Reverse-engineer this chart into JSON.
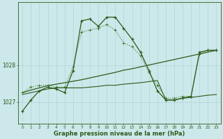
{
  "bg_color": "#cce8ea",
  "grid_color": "#b0d4d6",
  "line_color_dark": "#2d5a1b",
  "line_color_light": "#3d7a2b",
  "xlabel": "Graphe pression niveau de la mer (hPa)",
  "ylabel_ticks": [
    1027,
    1028
  ],
  "xlim": [
    -0.5,
    23.5
  ],
  "ylim": [
    1026.4,
    1029.7
  ],
  "hours": [
    0,
    1,
    2,
    3,
    4,
    5,
    6,
    7,
    8,
    9,
    10,
    11,
    12,
    13,
    14,
    15,
    16,
    17,
    18,
    19,
    20,
    21,
    22,
    23
  ],
  "series1": [
    1026.75,
    1027.05,
    1027.3,
    1027.4,
    1027.35,
    1027.25,
    1027.85,
    1029.2,
    1029.25,
    1029.05,
    1029.3,
    1029.3,
    1029.0,
    1028.7,
    1028.35,
    1027.85,
    1027.3,
    1027.05,
    1027.05,
    1027.1,
    1027.15,
    1028.35,
    1028.4,
    1028.4
  ],
  "series2": [
    1027.25,
    1027.4,
    1027.45,
    1027.45,
    1027.4,
    1027.4,
    1027.95,
    1028.9,
    1028.95,
    1029.0,
    1029.1,
    1028.95,
    1028.6,
    1028.5,
    1028.25,
    1027.8,
    1027.45,
    1027.1,
    1027.1,
    1027.15,
    1027.15,
    1028.3,
    1028.4,
    1028.4
  ],
  "series3": [
    1027.25,
    1027.32,
    1027.38,
    1027.44,
    1027.48,
    1027.52,
    1027.56,
    1027.6,
    1027.65,
    1027.7,
    1027.75,
    1027.8,
    1027.86,
    1027.9,
    1027.95,
    1028.0,
    1028.05,
    1028.1,
    1028.15,
    1028.2,
    1028.25,
    1028.3,
    1028.35,
    1028.4
  ],
  "series4": [
    1027.2,
    1027.25,
    1027.3,
    1027.35,
    1027.38,
    1027.38,
    1027.38,
    1027.38,
    1027.4,
    1027.42,
    1027.45,
    1027.45,
    1027.48,
    1027.5,
    1027.52,
    1027.55,
    1027.58,
    1027.05,
    1027.05,
    1027.1,
    1027.12,
    1027.15,
    1027.18,
    1027.2
  ]
}
